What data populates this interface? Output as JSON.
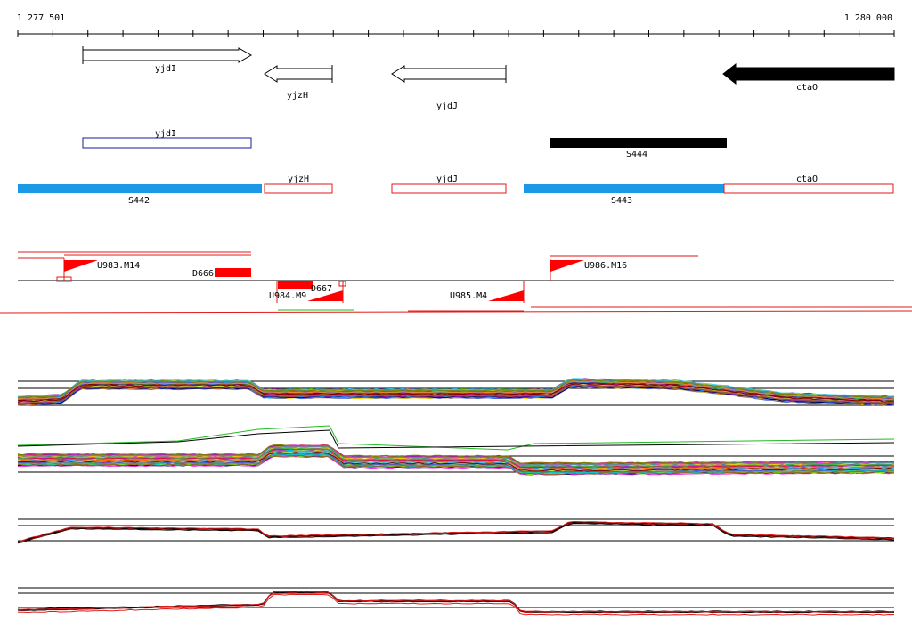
{
  "ruler": {
    "start_label": "1 277 501",
    "end_label": "1 280 000"
  },
  "genes": [
    {
      "name": "yjdI",
      "strand": "+",
      "filled": false
    },
    {
      "name": "yjzH",
      "strand": "-",
      "filled": false
    },
    {
      "name": "yjdJ",
      "strand": "-",
      "filled": false
    },
    {
      "name": "ctaO",
      "strand": "-",
      "filled": true
    }
  ],
  "annotation_row1": [
    {
      "label": "yjdI",
      "color": "#1a1aa0",
      "filled": false
    },
    {
      "label": "S444",
      "color": "#000000",
      "filled": true
    }
  ],
  "annotation_row2": [
    {
      "label": "S442",
      "color": "#1a9ae6",
      "filled": true
    },
    {
      "label": "yjzH",
      "color": "#e01a1a",
      "filled": false
    },
    {
      "label": "yjdJ",
      "color": "#e01a1a",
      "filled": false
    },
    {
      "label": "S443",
      "color": "#1a9ae6",
      "filled": true
    },
    {
      "label": "ctaO",
      "color": "#e01a1a",
      "filled": false
    }
  ],
  "features": [
    {
      "label": "U983.M14",
      "type": "upshift"
    },
    {
      "label": "D666",
      "type": "downshift"
    },
    {
      "label": "U984.M9",
      "type": "upshift"
    },
    {
      "label": "D667",
      "type": "downshift"
    },
    {
      "label": "U985.M4",
      "type": "upshift"
    },
    {
      "label": "U986.M16",
      "type": "upshift"
    }
  ],
  "colors": {
    "accent_red": "#ff0000",
    "blue_bar": "#1a9ae6",
    "black": "#000000"
  }
}
